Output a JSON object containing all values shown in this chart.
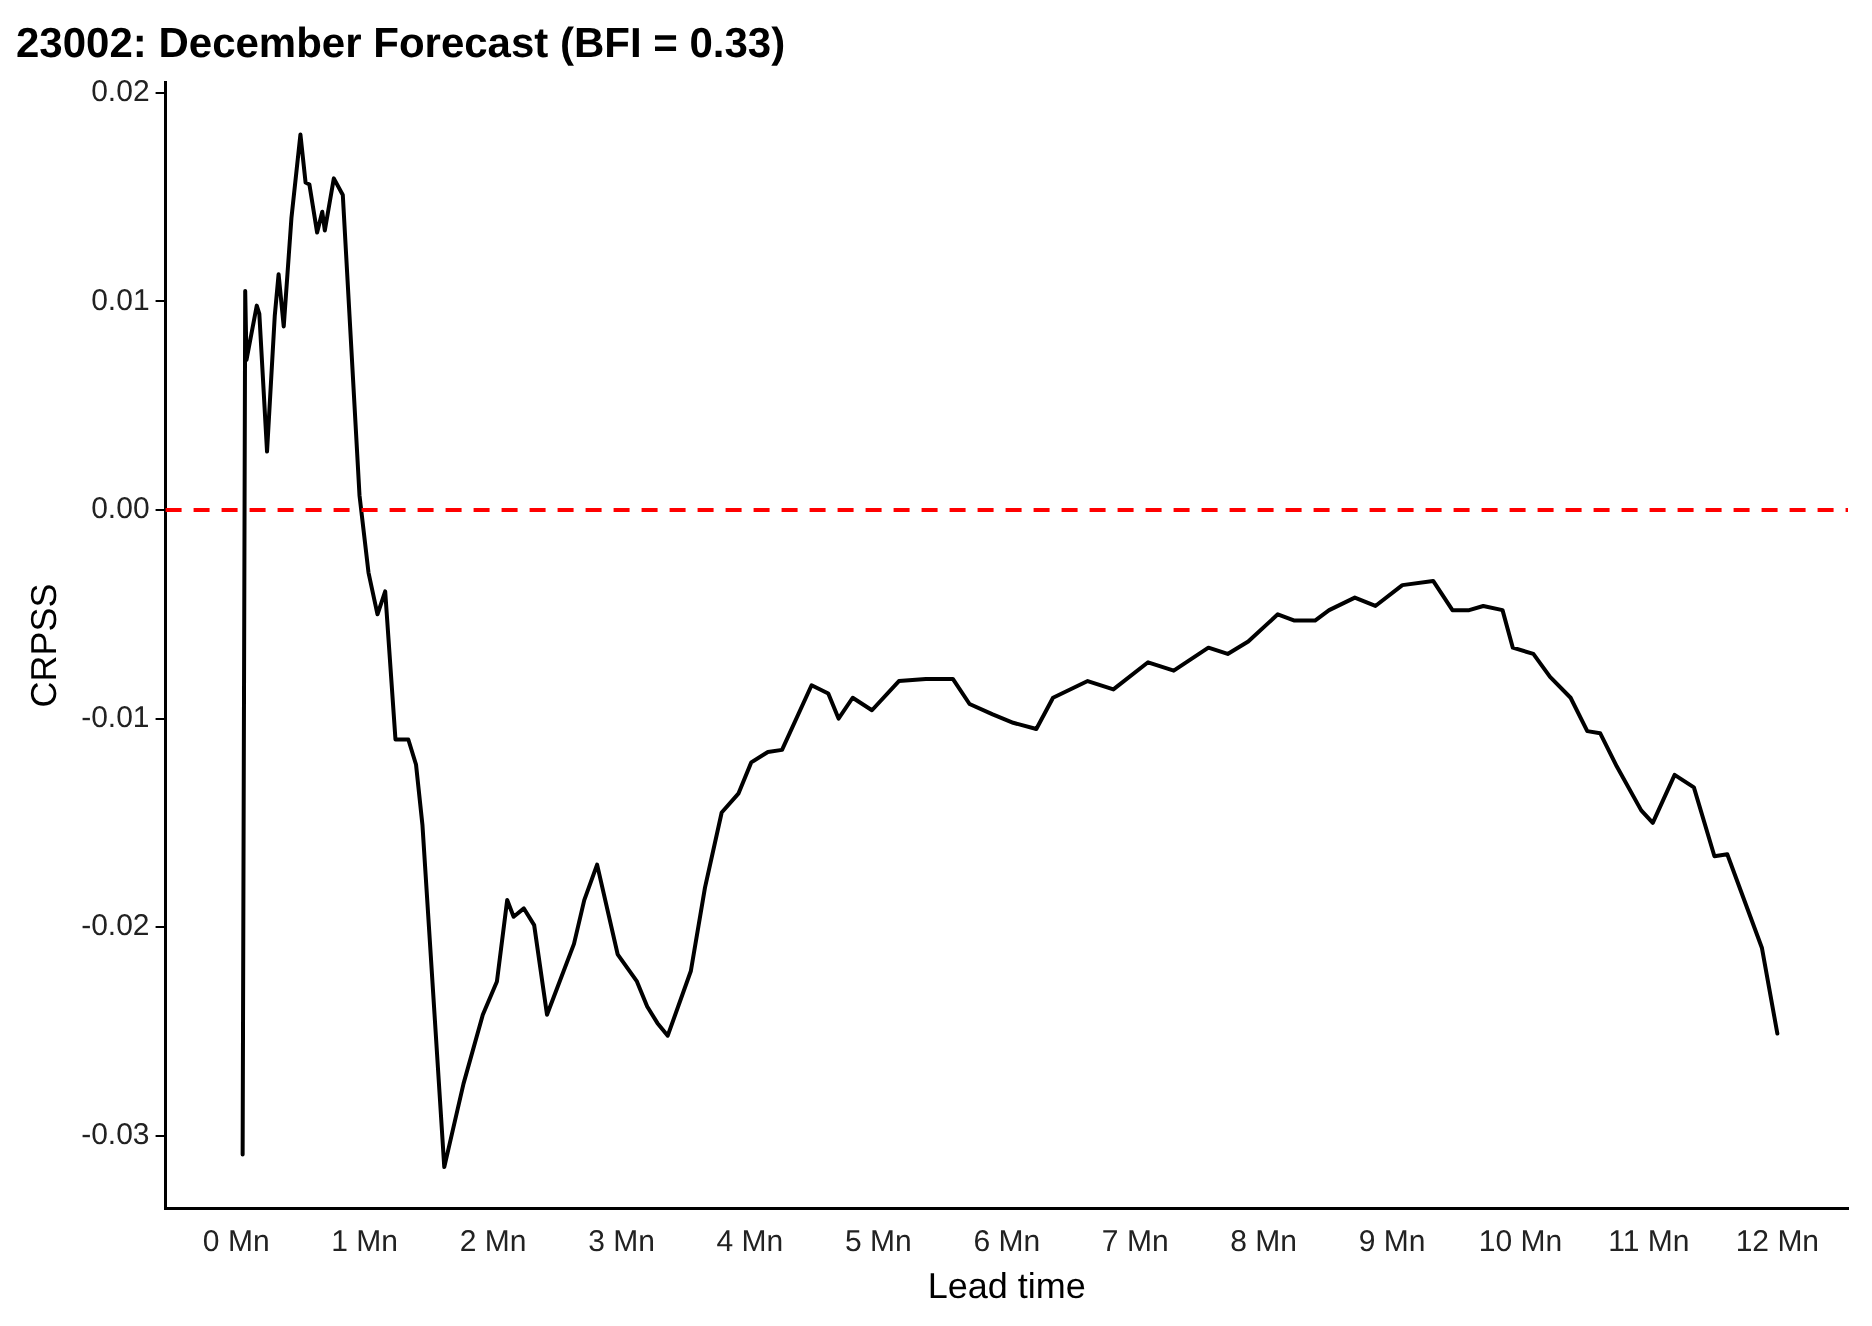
{
  "chart_data": {
    "type": "line",
    "title": "23002: December Forecast (BFI = 0.33)",
    "xlabel": "Lead time",
    "ylabel": "CRPSS",
    "xlim": [
      -0.55,
      12.55
    ],
    "ylim": [
      -0.0335,
      0.0205
    ],
    "xticks": [
      {
        "value": 0,
        "label": "0 Mn"
      },
      {
        "value": 1,
        "label": "1 Mn"
      },
      {
        "value": 2,
        "label": "2 Mn"
      },
      {
        "value": 3,
        "label": "3 Mn"
      },
      {
        "value": 4,
        "label": "4 Mn"
      },
      {
        "value": 5,
        "label": "5 Mn"
      },
      {
        "value": 6,
        "label": "6 Mn"
      },
      {
        "value": 7,
        "label": "7 Mn"
      },
      {
        "value": 8,
        "label": "8 Mn"
      },
      {
        "value": 9,
        "label": "9 Mn"
      },
      {
        "value": 10,
        "label": "10 Mn"
      },
      {
        "value": 11,
        "label": "11 Mn"
      },
      {
        "value": 12,
        "label": "12 Mn"
      }
    ],
    "yticks": [
      -0.03,
      -0.02,
      -0.01,
      {
        "value": 0,
        "label": "0.00"
      },
      0.01,
      0.02
    ],
    "grid": false,
    "legend": false,
    "marker": "none",
    "line_style": "solid",
    "ref_lines": [
      {
        "axis": "y",
        "value": 0,
        "color": "#ff0000",
        "line_style": "dashed"
      }
    ],
    "series": [
      {
        "color": "#000000",
        "x": [
          0.05,
          0.07,
          0.08,
          0.16,
          0.18,
          0.24,
          0.3,
          0.33,
          0.37,
          0.43,
          0.5,
          0.54,
          0.57,
          0.63,
          0.67,
          0.69,
          0.76,
          0.83,
          0.96,
          1.03,
          1.1,
          1.16,
          1.24,
          1.34,
          1.4,
          1.45,
          1.62,
          1.77,
          1.92,
          2.03,
          2.11,
          2.16,
          2.24,
          2.32,
          2.42,
          2.5,
          2.63,
          2.71,
          2.81,
          2.97,
          3.12,
          3.2,
          3.28,
          3.36,
          3.54,
          3.65,
          3.78,
          3.91,
          4.01,
          4.14,
          4.25,
          4.48,
          4.61,
          4.69,
          4.8,
          4.95,
          5.16,
          5.37,
          5.58,
          5.71,
          5.89,
          6.05,
          6.23,
          6.36,
          6.63,
          6.83,
          7.1,
          7.3,
          7.57,
          7.72,
          7.88,
          8.11,
          8.24,
          8.4,
          8.51,
          8.71,
          8.87,
          9.08,
          9.32,
          9.47,
          9.6,
          9.71,
          9.86,
          9.94,
          10.1,
          10.23,
          10.39,
          10.52,
          10.62,
          10.75,
          10.94,
          11.03,
          11.2,
          11.35,
          11.51,
          11.61,
          11.88,
          12.0
        ],
        "values": [
          -0.0309,
          0.0105,
          0.0072,
          0.0098,
          0.0094,
          0.0028,
          0.0093,
          0.0113,
          0.0088,
          0.014,
          0.018,
          0.0157,
          0.0156,
          0.0133,
          0.0143,
          0.0134,
          0.0159,
          0.0151,
          0.0007,
          -0.003,
          -0.005,
          -0.0039,
          -0.011,
          -0.011,
          -0.0122,
          -0.0151,
          -0.0315,
          -0.0275,
          -0.0242,
          -0.0226,
          -0.0187,
          -0.0195,
          -0.0191,
          -0.0199,
          -0.0242,
          -0.0229,
          -0.0208,
          -0.0187,
          -0.017,
          -0.0213,
          -0.0226,
          -0.0238,
          -0.0246,
          -0.0252,
          -0.0221,
          -0.0181,
          -0.0145,
          -0.0136,
          -0.0121,
          -0.0116,
          -0.0115,
          -0.0084,
          -0.0088,
          -0.01,
          -0.009,
          -0.0096,
          -0.0082,
          -0.0081,
          -0.0081,
          -0.0093,
          -0.0098,
          -0.0102,
          -0.0105,
          -0.009,
          -0.0082,
          -0.0086,
          -0.0073,
          -0.0077,
          -0.0066,
          -0.0069,
          -0.0063,
          -0.005,
          -0.0053,
          -0.0053,
          -0.0048,
          -0.0042,
          -0.0046,
          -0.0036,
          -0.0034,
          -0.0048,
          -0.0048,
          -0.0046,
          -0.0048,
          -0.0066,
          -0.0069,
          -0.008,
          -0.009,
          -0.0106,
          -0.0107,
          -0.0123,
          -0.0144,
          -0.015,
          -0.0127,
          -0.0133,
          -0.0166,
          -0.0165,
          -0.021,
          -0.0251
        ]
      }
    ]
  }
}
